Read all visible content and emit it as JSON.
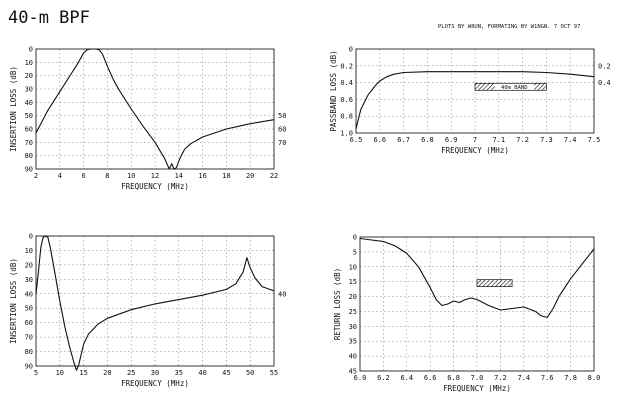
{
  "page": {
    "title": "40-m BPF",
    "credit": "PLOTS BY W8UN, FORMATING BY W1NGN.  7 OCT 97"
  },
  "chart_data": [
    {
      "type": "line",
      "xlabel": "FREQUENCY (MHz)",
      "ylabel": "INSERTION LOSS (dB)",
      "xlim": [
        2,
        22
      ],
      "ylim": [
        0,
        90
      ],
      "y_reversed": true,
      "grid": true,
      "x_ticks": [
        2,
        4,
        6,
        8,
        10,
        12,
        14,
        16,
        18,
        20,
        22
      ],
      "y_ticks": [
        0,
        10,
        20,
        30,
        40,
        50,
        60,
        70,
        80,
        90
      ],
      "right_ticks": [
        {
          "label": "50",
          "y": 50
        },
        {
          "label": "60",
          "y": 60
        },
        {
          "label": "70",
          "y": 70
        }
      ],
      "series": [
        {
          "x": [
            2,
            3,
            4,
            5,
            5.5,
            6,
            6.3,
            6.6,
            7,
            7.3,
            7.6,
            8,
            8.5,
            9,
            10,
            11,
            12,
            12.8,
            13.2,
            13.4,
            13.6,
            13.8,
            14,
            14.2,
            14.5,
            15,
            16,
            17,
            18,
            20,
            22
          ],
          "y": [
            63,
            46,
            32,
            18,
            11,
            3,
            0.5,
            0,
            0,
            0.5,
            4,
            13,
            23,
            31,
            45,
            58,
            70,
            82,
            90,
            86,
            90,
            89,
            84,
            80,
            75,
            71,
            66,
            63,
            60,
            56,
            53
          ]
        }
      ]
    },
    {
      "type": "line",
      "xlabel": "FREQUENCY (MHz)",
      "ylabel": "PASSBAND LOSS (dB)",
      "xlim": [
        6.5,
        7.5
      ],
      "ylim": [
        0,
        1.0
      ],
      "y_reversed": true,
      "grid": true,
      "x_ticks": [
        6.5,
        6.6,
        6.7,
        6.8,
        6.9,
        7.0,
        7.1,
        7.2,
        7.3,
        7.4,
        7.5
      ],
      "y_ticks": [
        0,
        0.2,
        0.4,
        0.6,
        0.8,
        1.0
      ],
      "y_tick_labels": [
        "0",
        "0.2",
        "0.4",
        "0.6",
        "0.8",
        "1.0"
      ],
      "right_ticks": [
        {
          "label": "0.2",
          "y": 0.2
        },
        {
          "label": "0.4",
          "y": 0.4
        }
      ],
      "annotation": {
        "text": "40m BAND",
        "x_range": [
          7.0,
          7.3
        ],
        "y": 0.45
      },
      "series": [
        {
          "x": [
            6.5,
            6.52,
            6.55,
            6.58,
            6.6,
            6.63,
            6.66,
            6.7,
            6.8,
            6.9,
            7.0,
            7.1,
            7.2,
            7.3,
            7.4,
            7.5
          ],
          "y": [
            0.95,
            0.72,
            0.55,
            0.44,
            0.38,
            0.33,
            0.3,
            0.28,
            0.27,
            0.27,
            0.27,
            0.27,
            0.27,
            0.28,
            0.3,
            0.33
          ]
        }
      ]
    },
    {
      "type": "line",
      "xlabel": "FREQUENCY (MHz)",
      "ylabel": "INSERTION LOSS (dB)",
      "xlim": [
        5,
        55
      ],
      "ylim": [
        0,
        90
      ],
      "y_reversed": true,
      "grid": true,
      "x_ticks": [
        5,
        10,
        15,
        20,
        25,
        30,
        35,
        40,
        45,
        50,
        55
      ],
      "y_ticks": [
        0,
        10,
        20,
        30,
        40,
        50,
        60,
        70,
        80,
        90
      ],
      "right_ticks": [
        {
          "label": "40",
          "y": 40
        }
      ],
      "series": [
        {
          "x": [
            5,
            5.5,
            6,
            6.5,
            7,
            7.5,
            8,
            9,
            10,
            11,
            12,
            13,
            13.5,
            14,
            14.5,
            15,
            16,
            18,
            20,
            25,
            30,
            35,
            40,
            45,
            47,
            48.5,
            49.3,
            50,
            51,
            52.5,
            55
          ],
          "y": [
            40,
            25,
            8,
            1,
            0,
            1,
            8,
            26,
            45,
            62,
            76,
            88,
            93,
            89,
            82,
            75,
            68,
            61,
            57,
            51,
            47,
            44,
            41,
            37,
            33,
            25,
            15,
            22,
            29,
            35,
            38
          ]
        }
      ]
    },
    {
      "type": "line",
      "xlabel": "FREQUENCY (MHz)",
      "ylabel": "RETURN LOSS (dB)",
      "xlim": [
        6.0,
        8.0
      ],
      "ylim": [
        0,
        45
      ],
      "y_reversed": true,
      "grid": true,
      "x_ticks": [
        6.0,
        6.2,
        6.4,
        6.6,
        6.8,
        7.0,
        7.2,
        7.4,
        7.6,
        7.8,
        8.0
      ],
      "x_tick_labels": [
        "6.0",
        "6.2",
        "6.4",
        "6.6",
        "6.8",
        "7.0",
        "7.2",
        "7.4",
        "7.6",
        "7.8",
        "8.0"
      ],
      "y_ticks": [
        0,
        5,
        10,
        15,
        20,
        25,
        30,
        35,
        40,
        45
      ],
      "annotation": {
        "text": "",
        "x_range": [
          7.0,
          7.3
        ],
        "y": 15.5
      },
      "series": [
        {
          "x": [
            6.0,
            6.1,
            6.2,
            6.3,
            6.4,
            6.5,
            6.6,
            6.65,
            6.7,
            6.75,
            6.8,
            6.85,
            6.9,
            6.95,
            7.0,
            7.05,
            7.1,
            7.2,
            7.3,
            7.4,
            7.5,
            7.55,
            7.6,
            7.65,
            7.7,
            7.8,
            7.9,
            8.0
          ],
          "y": [
            0.5,
            1,
            1.5,
            3,
            5.5,
            10,
            17,
            21,
            23,
            22.5,
            21.5,
            22,
            21,
            20.5,
            21,
            22,
            23,
            24.5,
            24,
            23.5,
            25,
            26.5,
            27,
            24,
            20,
            14,
            9,
            4
          ]
        }
      ]
    }
  ]
}
